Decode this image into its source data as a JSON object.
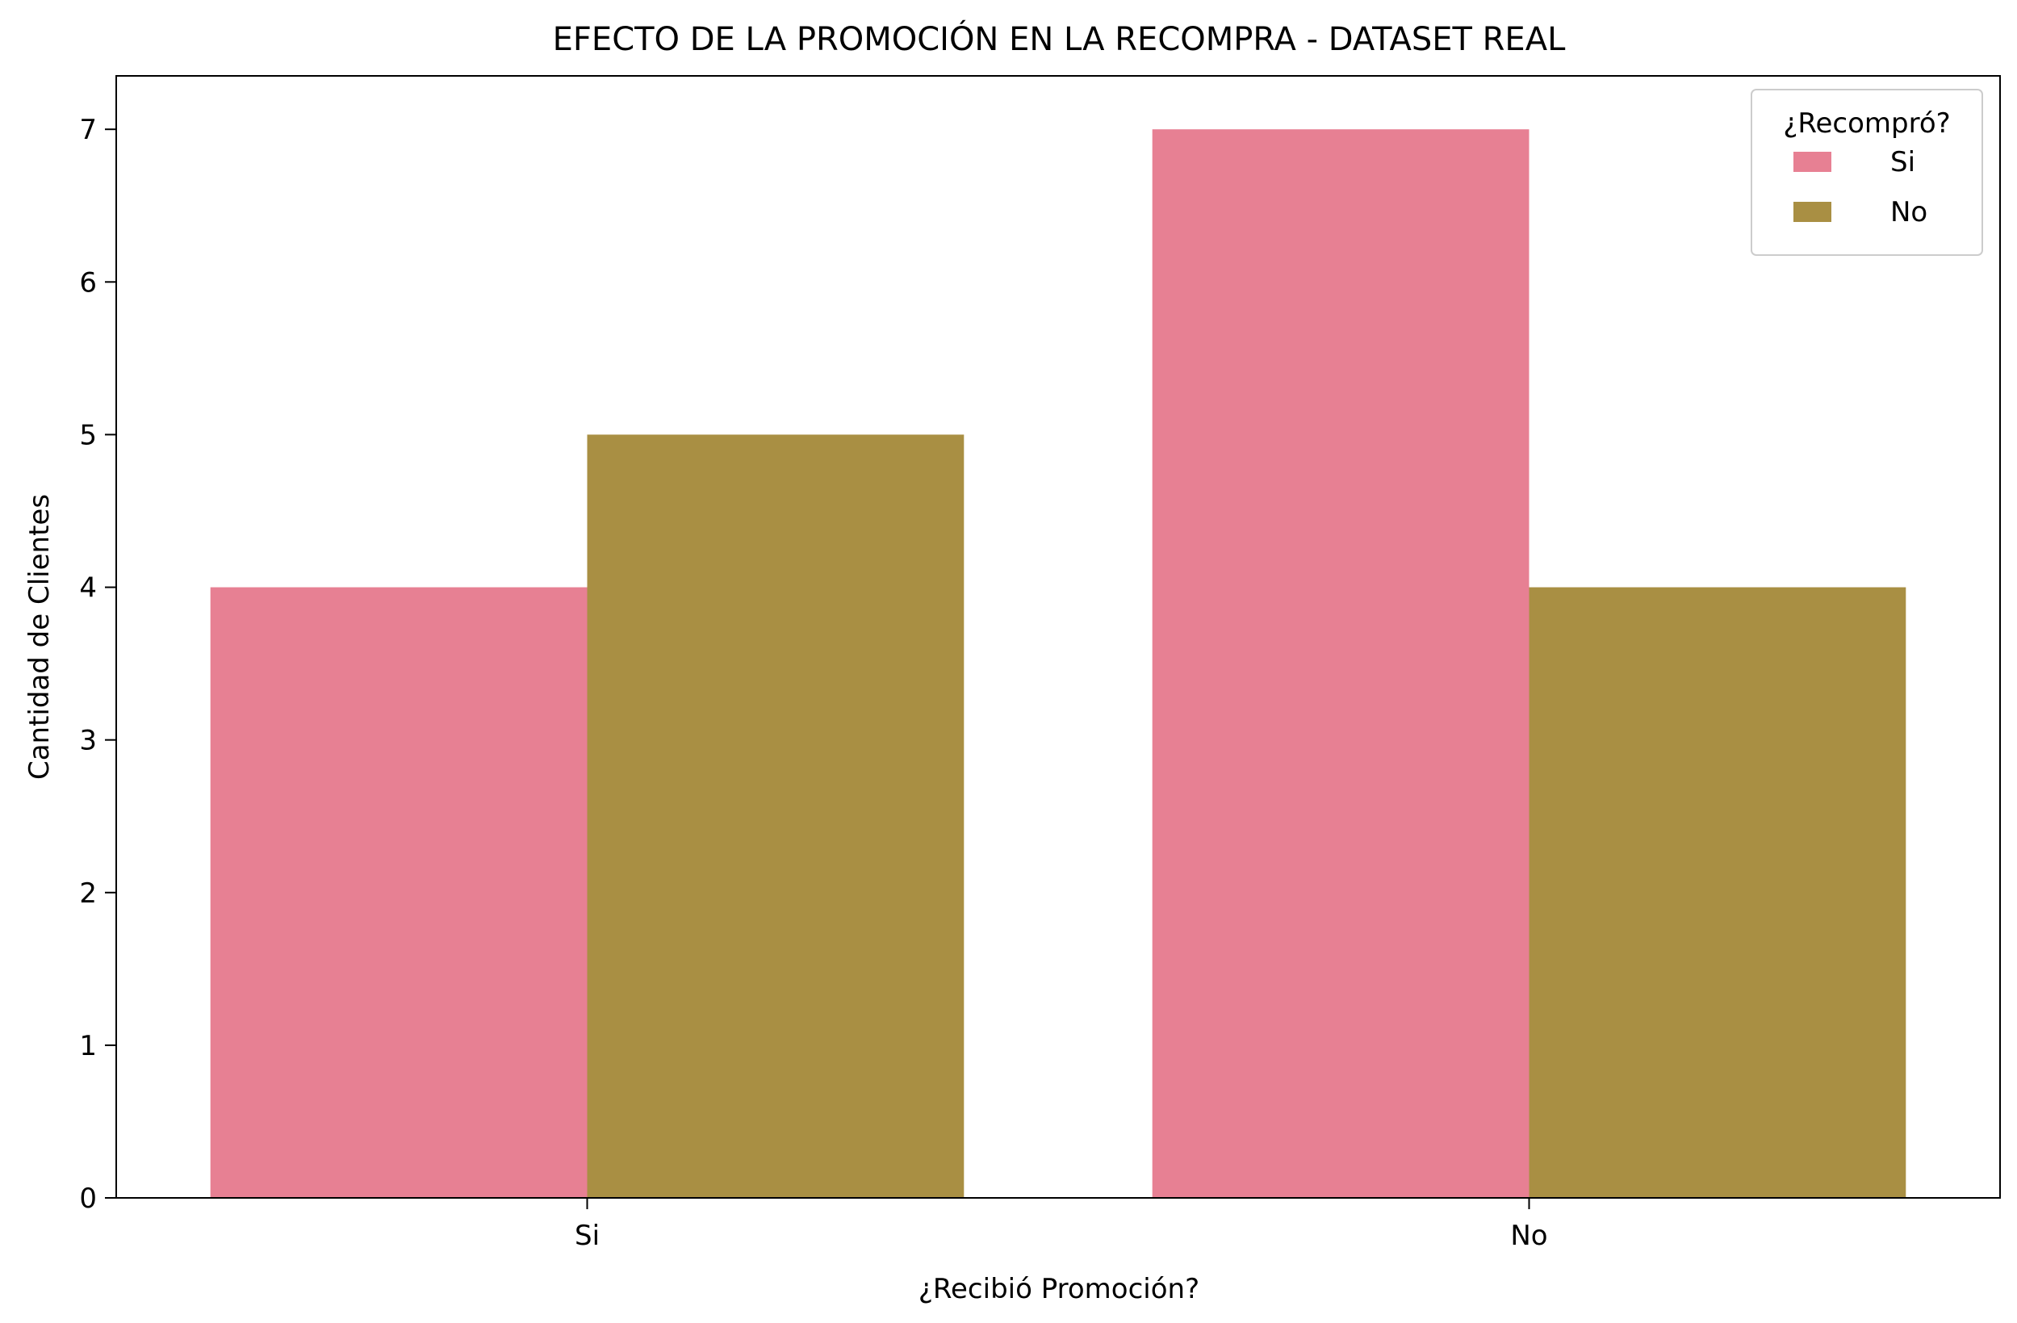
{
  "chart_data": {
    "type": "bar",
    "title": "EFECTO DE LA PROMOCIÓN EN LA RECOMPRA - DATASET REAL",
    "xlabel": "¿Recibió Promoción?",
    "ylabel": "Cantidad de Clientes",
    "categories": [
      "Si",
      "No"
    ],
    "series": [
      {
        "name": "Si",
        "values": [
          4,
          7
        ],
        "color": "#e78093"
      },
      {
        "name": "No",
        "values": [
          5,
          4
        ],
        "color": "#a98f43"
      }
    ],
    "ylim": [
      0,
      7.35
    ],
    "yticks": [
      0,
      1,
      2,
      3,
      4,
      5,
      6,
      7
    ],
    "grid": false,
    "legend": {
      "title": "¿Recompró?",
      "placement": "top-right"
    }
  }
}
